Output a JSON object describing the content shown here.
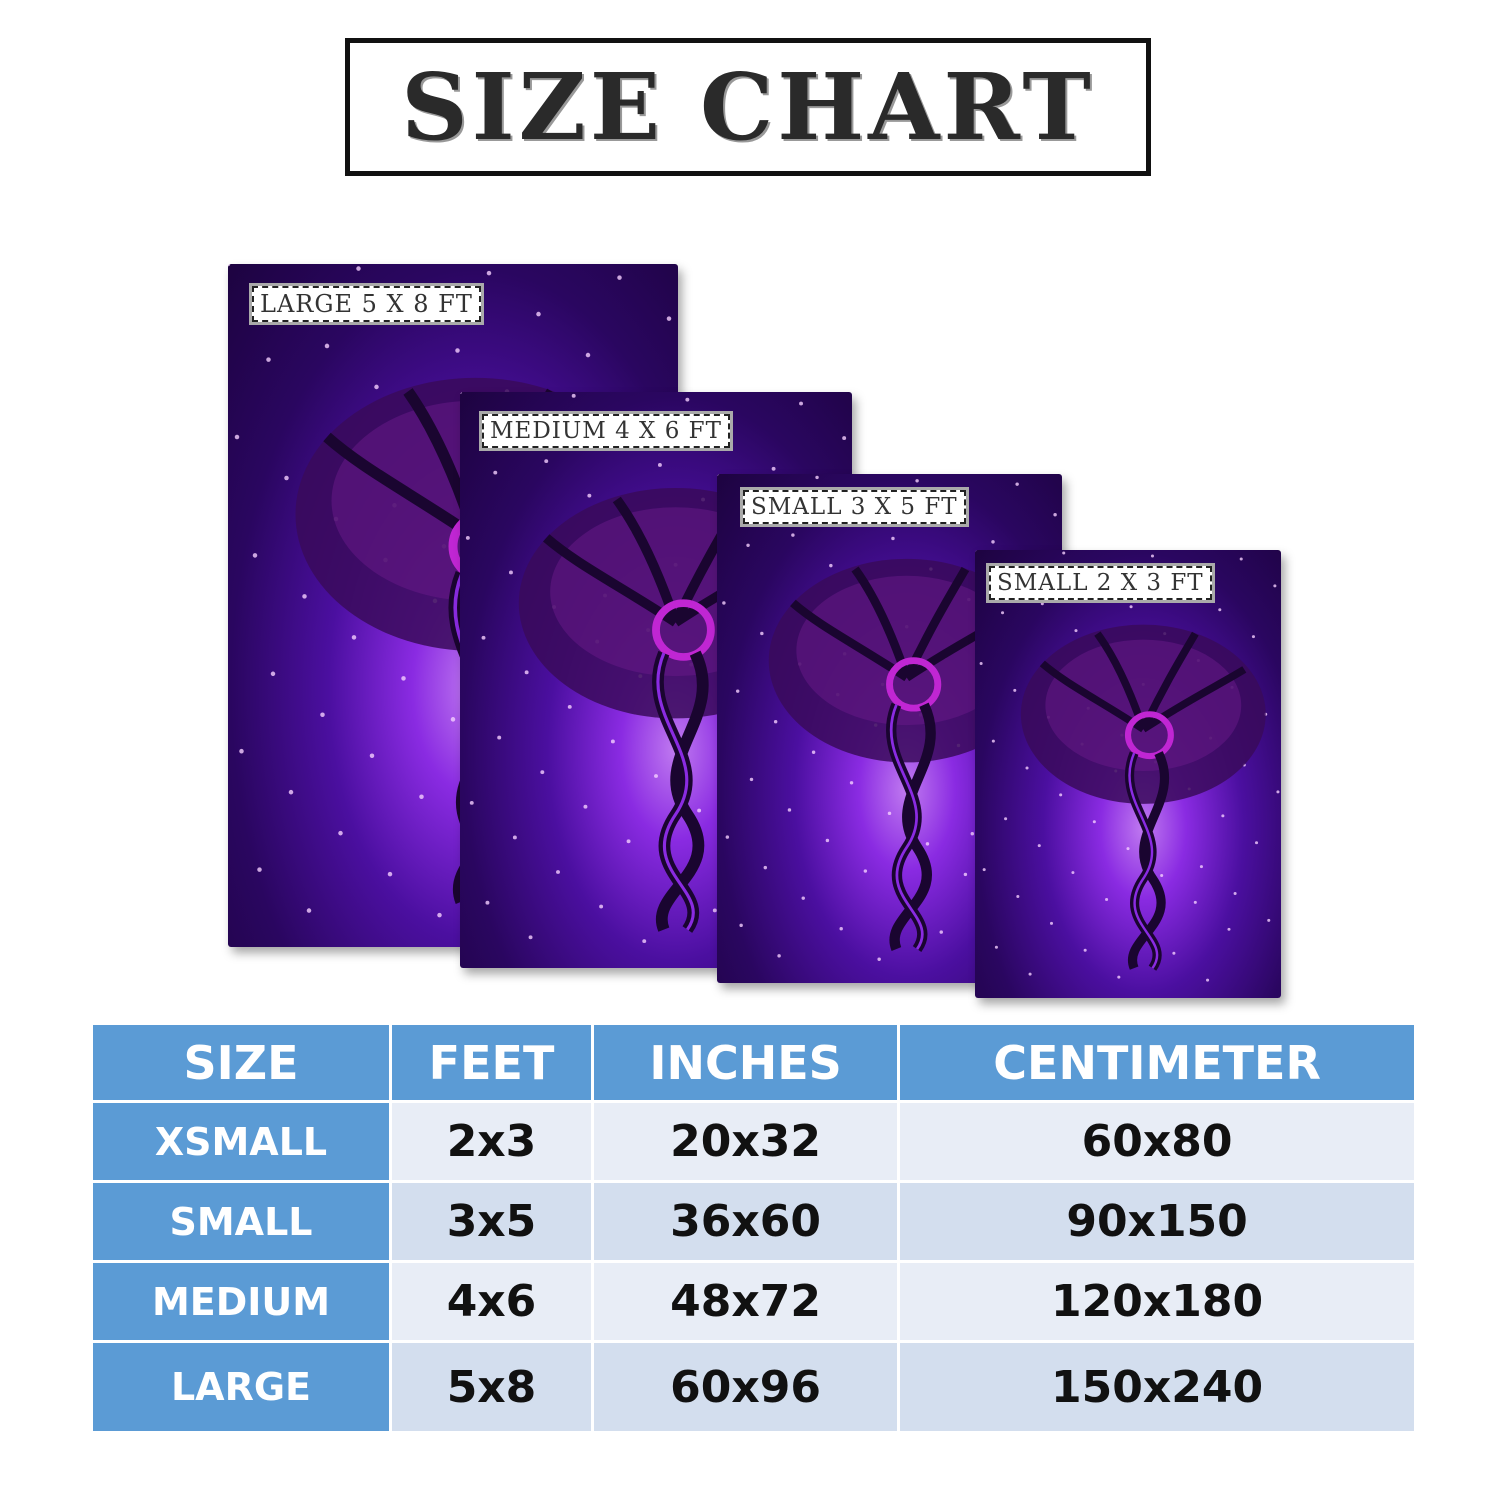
{
  "title": "SIZE CHART",
  "rugs": [
    {
      "label": "LARGE 5 X 8 FT"
    },
    {
      "label": "MEDIUM 4 X 6 FT"
    },
    {
      "label": "SMALL 3 X 5 FT"
    },
    {
      "label": "SMALL 2 X 3 FT"
    }
  ],
  "table": {
    "headers": [
      "SIZE",
      "FEET",
      "INCHES",
      "CENTIMETER"
    ],
    "rows": [
      [
        "XSMALL",
        "2x3",
        "20x32",
        "60x80"
      ],
      [
        "SMALL",
        "3x5",
        "36x60",
        "90x150"
      ],
      [
        "MEDIUM",
        "4x6",
        "48x72",
        "120x180"
      ],
      [
        "LARGE",
        "5x8",
        "60x96",
        "150x240"
      ]
    ]
  },
  "colors": {
    "header_blue": "#5b9bd5",
    "rug_purple": "#4b0fa0",
    "accent_magenta": "#c026d3"
  }
}
